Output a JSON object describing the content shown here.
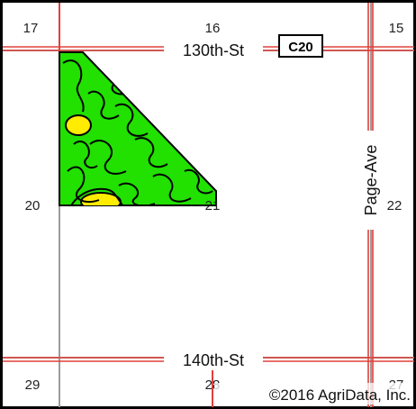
{
  "map": {
    "sections": {
      "nw": "17",
      "n": "16",
      "ne": "15",
      "w": "20",
      "c": "21",
      "e": "22",
      "sw": "29",
      "s": "28",
      "se": "27"
    },
    "roads": {
      "north": "130th-St",
      "south": "140th-St",
      "east": "Page-Ave"
    },
    "shield": "C20",
    "copyright": "©2016 AgriData, Inc.",
    "colors": {
      "border": "#000000",
      "road": "#e0403a",
      "section_line": "#9c9c9c",
      "field_green": "#22e000",
      "soil_yellow": "#ffec00",
      "soil_lines": "#000000"
    }
  }
}
